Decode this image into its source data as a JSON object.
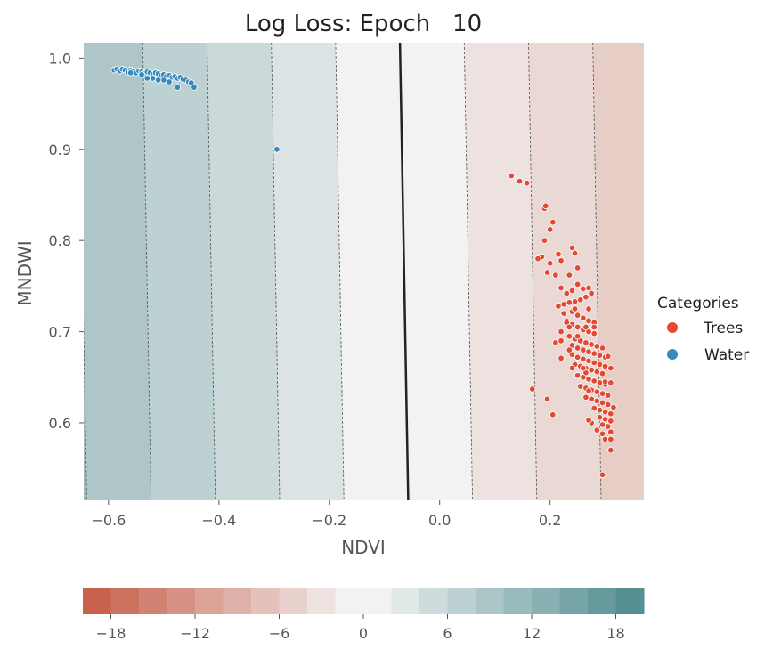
{
  "chart_data": {
    "type": "scatter",
    "title": "Log Loss: Epoch   10",
    "xlabel": "NDVI",
    "ylabel": "MNDWI",
    "xlim": [
      -0.645,
      0.37
    ],
    "ylim": [
      0.515,
      1.017
    ],
    "xticks": [
      -0.6,
      -0.4,
      -0.2,
      0.0,
      0.2
    ],
    "xtick_labels": [
      "−0.6",
      "−0.4",
      "−0.2",
      "0.0",
      "0.2"
    ],
    "yticks": [
      0.6,
      0.7,
      0.8,
      0.9,
      1.0
    ],
    "ytick_labels": [
      "0.6",
      "0.7",
      "0.8",
      "0.9",
      "1.0"
    ],
    "decision_boundary": [
      [
        -0.072,
        1.017
      ],
      [
        -0.057,
        0.515
      ]
    ],
    "legend": {
      "title": "Categories",
      "placement": "right",
      "entries": [
        {
          "label": "Trees",
          "color": "#e24a33"
        },
        {
          "label": "Water",
          "color": "#348abd"
        }
      ]
    },
    "series": [
      {
        "name": "Water",
        "color": "#348abd",
        "points": [
          [
            -0.59,
            0.987
          ],
          [
            -0.585,
            0.988
          ],
          [
            -0.58,
            0.986
          ],
          [
            -0.575,
            0.988
          ],
          [
            -0.57,
            0.987
          ],
          [
            -0.565,
            0.985
          ],
          [
            -0.56,
            0.987
          ],
          [
            -0.555,
            0.986
          ],
          [
            -0.55,
            0.984
          ],
          [
            -0.545,
            0.986
          ],
          [
            -0.54,
            0.985
          ],
          [
            -0.535,
            0.983
          ],
          [
            -0.53,
            0.985
          ],
          [
            -0.525,
            0.984
          ],
          [
            -0.52,
            0.982
          ],
          [
            -0.515,
            0.984
          ],
          [
            -0.51,
            0.983
          ],
          [
            -0.505,
            0.981
          ],
          [
            -0.5,
            0.982
          ],
          [
            -0.495,
            0.98
          ],
          [
            -0.49,
            0.981
          ],
          [
            -0.485,
            0.979
          ],
          [
            -0.48,
            0.98
          ],
          [
            -0.475,
            0.978
          ],
          [
            -0.47,
            0.979
          ],
          [
            -0.465,
            0.977
          ],
          [
            -0.46,
            0.976
          ],
          [
            -0.455,
            0.974
          ],
          [
            -0.45,
            0.973
          ],
          [
            -0.56,
            0.984
          ],
          [
            -0.54,
            0.982
          ],
          [
            -0.52,
            0.978
          ],
          [
            -0.5,
            0.976
          ],
          [
            -0.49,
            0.974
          ],
          [
            -0.475,
            0.968
          ],
          [
            -0.445,
            0.968
          ],
          [
            -0.53,
            0.978
          ],
          [
            -0.51,
            0.976
          ],
          [
            -0.295,
            0.9
          ]
        ]
      },
      {
        "name": "Trees",
        "color": "#e24a33",
        "points": [
          [
            0.13,
            0.871
          ],
          [
            0.145,
            0.865
          ],
          [
            0.158,
            0.863
          ],
          [
            0.19,
            0.835
          ],
          [
            0.192,
            0.838
          ],
          [
            0.205,
            0.82
          ],
          [
            0.2,
            0.812
          ],
          [
            0.19,
            0.8
          ],
          [
            0.185,
            0.782
          ],
          [
            0.178,
            0.78
          ],
          [
            0.2,
            0.775
          ],
          [
            0.215,
            0.785
          ],
          [
            0.22,
            0.778
          ],
          [
            0.24,
            0.792
          ],
          [
            0.245,
            0.786
          ],
          [
            0.25,
            0.77
          ],
          [
            0.235,
            0.762
          ],
          [
            0.195,
            0.765
          ],
          [
            0.21,
            0.762
          ],
          [
            0.22,
            0.748
          ],
          [
            0.23,
            0.742
          ],
          [
            0.24,
            0.745
          ],
          [
            0.25,
            0.752
          ],
          [
            0.26,
            0.747
          ],
          [
            0.27,
            0.748
          ],
          [
            0.275,
            0.742
          ],
          [
            0.265,
            0.738
          ],
          [
            0.255,
            0.735
          ],
          [
            0.245,
            0.733
          ],
          [
            0.235,
            0.732
          ],
          [
            0.225,
            0.73
          ],
          [
            0.215,
            0.728
          ],
          [
            0.225,
            0.72
          ],
          [
            0.24,
            0.722
          ],
          [
            0.25,
            0.718
          ],
          [
            0.26,
            0.715
          ],
          [
            0.27,
            0.712
          ],
          [
            0.28,
            0.71
          ],
          [
            0.23,
            0.712
          ],
          [
            0.24,
            0.708
          ],
          [
            0.25,
            0.705
          ],
          [
            0.26,
            0.702
          ],
          [
            0.27,
            0.7
          ],
          [
            0.28,
            0.698
          ],
          [
            0.22,
            0.7
          ],
          [
            0.235,
            0.695
          ],
          [
            0.245,
            0.692
          ],
          [
            0.255,
            0.69
          ],
          [
            0.265,
            0.688
          ],
          [
            0.275,
            0.686
          ],
          [
            0.285,
            0.684
          ],
          [
            0.295,
            0.682
          ],
          [
            0.24,
            0.685
          ],
          [
            0.25,
            0.682
          ],
          [
            0.26,
            0.68
          ],
          [
            0.27,
            0.678
          ],
          [
            0.28,
            0.676
          ],
          [
            0.29,
            0.674
          ],
          [
            0.3,
            0.672
          ],
          [
            0.24,
            0.675
          ],
          [
            0.25,
            0.672
          ],
          [
            0.26,
            0.67
          ],
          [
            0.27,
            0.668
          ],
          [
            0.28,
            0.666
          ],
          [
            0.29,
            0.664
          ],
          [
            0.3,
            0.662
          ],
          [
            0.245,
            0.664
          ],
          [
            0.255,
            0.662
          ],
          [
            0.265,
            0.66
          ],
          [
            0.275,
            0.658
          ],
          [
            0.285,
            0.656
          ],
          [
            0.295,
            0.654
          ],
          [
            0.25,
            0.652
          ],
          [
            0.26,
            0.65
          ],
          [
            0.27,
            0.648
          ],
          [
            0.28,
            0.646
          ],
          [
            0.29,
            0.644
          ],
          [
            0.3,
            0.642
          ],
          [
            0.255,
            0.64
          ],
          [
            0.265,
            0.638
          ],
          [
            0.275,
            0.636
          ],
          [
            0.285,
            0.634
          ],
          [
            0.295,
            0.632
          ],
          [
            0.305,
            0.63
          ],
          [
            0.265,
            0.628
          ],
          [
            0.275,
            0.626
          ],
          [
            0.285,
            0.624
          ],
          [
            0.295,
            0.622
          ],
          [
            0.305,
            0.62
          ],
          [
            0.28,
            0.616
          ],
          [
            0.29,
            0.614
          ],
          [
            0.3,
            0.612
          ],
          [
            0.31,
            0.61
          ],
          [
            0.315,
            0.617
          ],
          [
            0.29,
            0.606
          ],
          [
            0.3,
            0.604
          ],
          [
            0.31,
            0.602
          ],
          [
            0.275,
            0.6
          ],
          [
            0.295,
            0.598
          ],
          [
            0.305,
            0.596
          ],
          [
            0.285,
            0.592
          ],
          [
            0.31,
            0.59
          ],
          [
            0.295,
            0.588
          ],
          [
            0.3,
            0.582
          ],
          [
            0.31,
            0.582
          ],
          [
            0.31,
            0.57
          ],
          [
            0.295,
            0.543
          ],
          [
            0.27,
            0.603
          ],
          [
            0.205,
            0.609
          ],
          [
            0.21,
            0.688
          ],
          [
            0.22,
            0.69
          ],
          [
            0.22,
            0.671
          ],
          [
            0.23,
            0.71
          ],
          [
            0.235,
            0.68
          ],
          [
            0.24,
            0.66
          ],
          [
            0.305,
            0.673
          ],
          [
            0.31,
            0.66
          ],
          [
            0.3,
            0.645
          ],
          [
            0.31,
            0.644
          ],
          [
            0.245,
            0.725
          ],
          [
            0.27,
            0.725
          ],
          [
            0.27,
            0.635
          ],
          [
            0.265,
            0.655
          ],
          [
            0.168,
            0.637
          ],
          [
            0.195,
            0.626
          ],
          [
            0.26,
            0.66
          ],
          [
            0.28,
            0.705
          ],
          [
            0.25,
            0.695
          ],
          [
            0.265,
            0.705
          ],
          [
            0.235,
            0.705
          ]
        ]
      }
    ],
    "colorbar": {
      "ticks": [
        -18,
        -12,
        -6,
        0,
        6,
        12,
        18
      ],
      "tick_labels": [
        "−18",
        "−12",
        "−6",
        "0",
        "6",
        "12",
        "18"
      ],
      "range": [
        -20,
        20
      ],
      "low_color": "#c8624d",
      "mid_color": "#f2f2f2",
      "high_color": "#548f92"
    }
  }
}
